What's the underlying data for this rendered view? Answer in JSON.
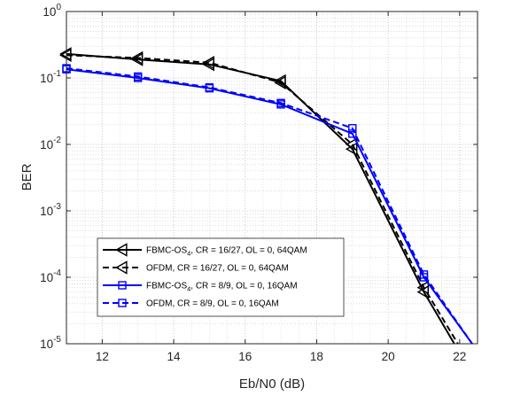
{
  "chart_data": {
    "type": "line",
    "title": "",
    "xlabel": "Eb/N0 (dB)",
    "ylabel": "BER",
    "xlim": [
      11,
      22.5
    ],
    "ylim": [
      1e-05,
      1
    ],
    "yscale": "log",
    "grid": "on (major and minor)",
    "legend_placement": "bottom-left",
    "x_ticks": [
      12,
      14,
      16,
      18,
      20,
      22
    ],
    "x_tick_labels": [
      "12",
      "14",
      "16",
      "18",
      "20",
      "22"
    ],
    "y_tick_labels": [
      {
        "base": "10",
        "exp": "-5"
      },
      {
        "base": "10",
        "exp": "-4"
      },
      {
        "base": "10",
        "exp": "-3"
      },
      {
        "base": "10",
        "exp": "-2"
      },
      {
        "base": "10",
        "exp": "-1"
      },
      {
        "base": "10",
        "exp": "0"
      }
    ],
    "series": [
      {
        "name": "FBMC-OS",
        "name_subscript": "4",
        "name_rest": ", CR =  16/27, OL = 0, 64QAM",
        "color": "#000000",
        "style": "solid",
        "marker": "triangle-left",
        "x": [
          11,
          13,
          15,
          17,
          19,
          21,
          21.85
        ],
        "y": [
          0.23,
          0.19,
          0.16,
          0.09,
          0.0085,
          6e-05,
          1e-05
        ],
        "marker_x": [
          11,
          13,
          15,
          17,
          19,
          21
        ]
      },
      {
        "name": "OFDM, CR = 16/27, OL = 0, 64QAM",
        "color": "#000000",
        "style": "dashed",
        "marker": "triangle-left",
        "x": [
          11,
          13,
          15,
          17,
          19,
          21,
          21.95
        ],
        "y": [
          0.22,
          0.2,
          0.17,
          0.085,
          0.01,
          7e-05,
          1e-05
        ],
        "marker_x": [
          11,
          13,
          15,
          17,
          19,
          21
        ]
      },
      {
        "name": "FBMC-OS",
        "name_subscript": "4",
        "name_rest": ", CR =  8/9, OL = 0, 16QAM",
        "color": "#0000ff",
        "style": "solid",
        "marker": "square",
        "x": [
          11,
          13,
          15,
          17,
          19,
          21,
          22.35
        ],
        "y": [
          0.135,
          0.1,
          0.07,
          0.04,
          0.0145,
          0.0001,
          1e-05
        ],
        "marker_x": [
          11,
          13,
          15,
          17,
          19,
          21
        ]
      },
      {
        "name": "OFDM, CR = 8/9, OL = 0, 16QAM",
        "color": "#0000ff",
        "style": "dashed",
        "marker": "square",
        "x": [
          11,
          13,
          15,
          17,
          19,
          21,
          22.35
        ],
        "y": [
          0.14,
          0.105,
          0.072,
          0.042,
          0.0175,
          0.00011,
          1e-05
        ],
        "marker_x": [
          11,
          13,
          15,
          17,
          19,
          21
        ]
      }
    ]
  }
}
